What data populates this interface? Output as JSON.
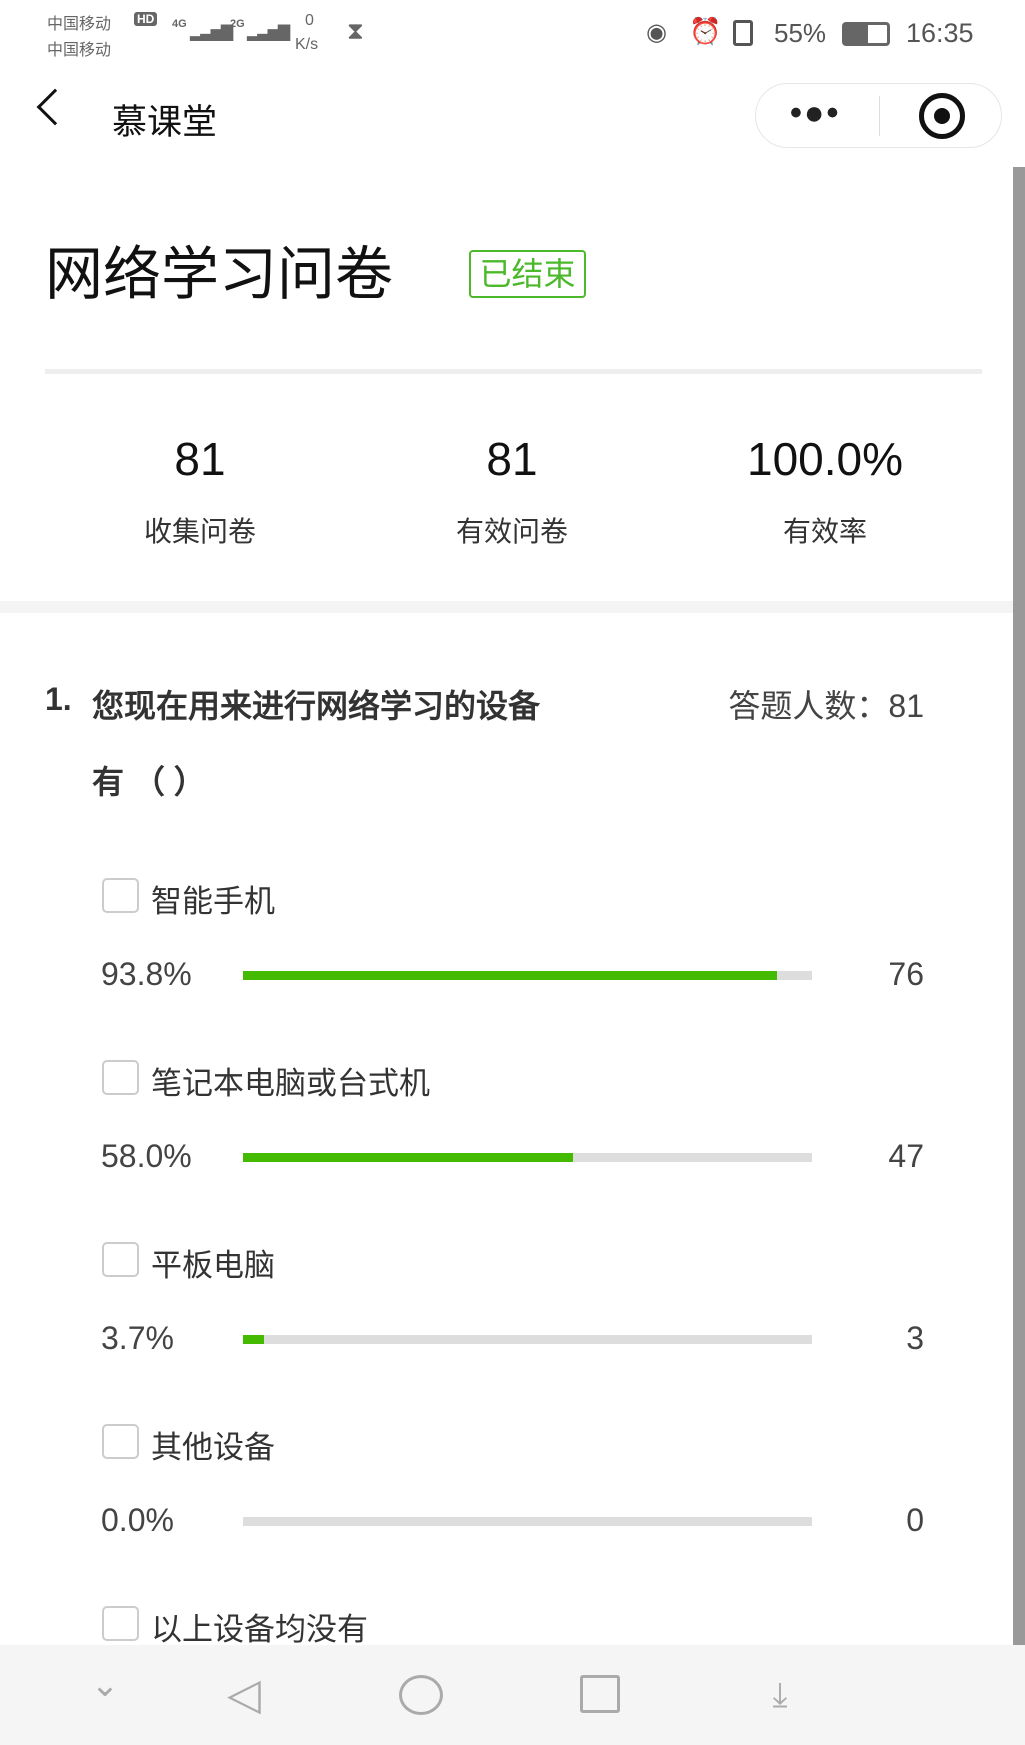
{
  "status_bar": {
    "carrier1": "中国移动",
    "hd": "HD",
    "net1": "4G",
    "net2": "2G",
    "carrier2": "中国移动",
    "speed_value": "0",
    "speed_unit": "K/s",
    "battery": "55%",
    "time": "16:35"
  },
  "nav": {
    "title": "慕课堂"
  },
  "survey": {
    "title": "网络学习问卷",
    "status_badge": "已结束",
    "status_color": "#4cb82c"
  },
  "stats": [
    {
      "value": "81",
      "label": "收集问卷"
    },
    {
      "value": "81",
      "label": "有效问卷"
    },
    {
      "value": "100.0%",
      "label": "有效率"
    }
  ],
  "question": {
    "number": "1.",
    "text_line1": "您现在用来进行网络学习的设备",
    "text_line2": "有 （ ）",
    "respondents_label": "答题人数：81",
    "options": [
      {
        "label": "智能手机",
        "percent": "93.8%",
        "fraction": 0.938,
        "count": "76"
      },
      {
        "label": "笔记本电脑或台式机",
        "percent": "58.0%",
        "fraction": 0.58,
        "count": "47"
      },
      {
        "label": "平板电脑",
        "percent": "3.7%",
        "fraction": 0.037,
        "count": "3"
      },
      {
        "label": "其他设备",
        "percent": "0.0%",
        "fraction": 0,
        "count": "0"
      },
      {
        "label": "以上设备均没有"
      }
    ]
  },
  "bar_color": "#44bb00"
}
